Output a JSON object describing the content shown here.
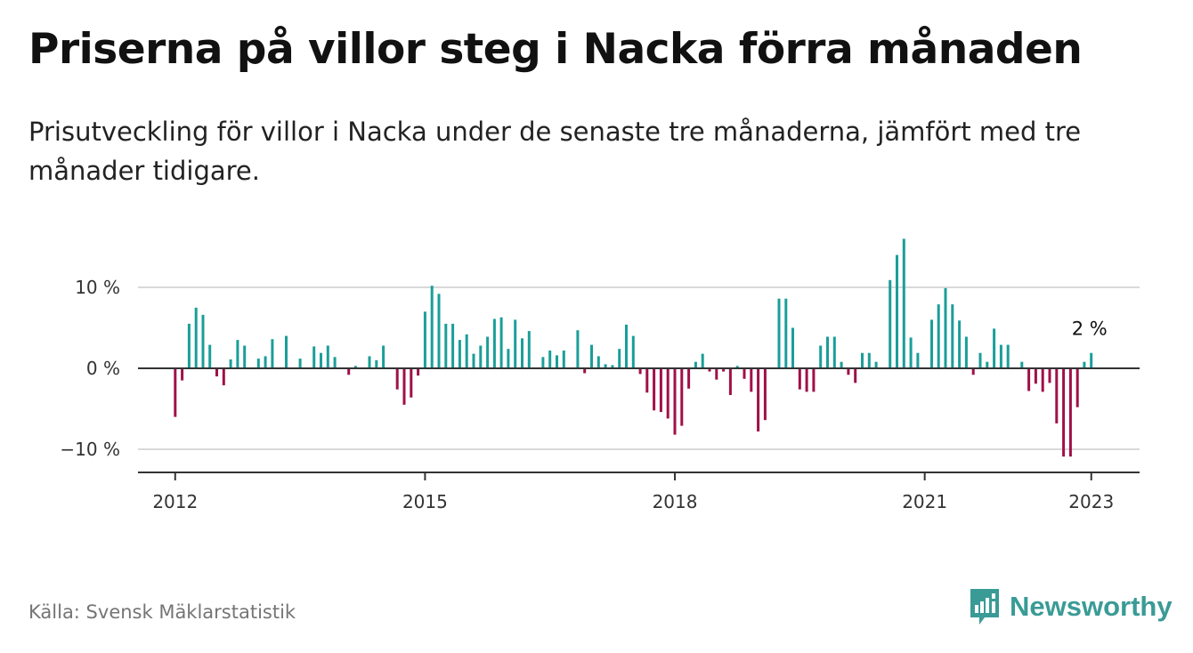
{
  "header": {
    "title": "Priserna på villor steg i Nacka förra månaden",
    "subtitle": "Prisutveckling för villor i Nacka under de senaste tre månaderna, jämfört med tre månader tidigare."
  },
  "footer": {
    "source": "Källa: Svensk Mäklarstatistik",
    "brand": "Newsworthy"
  },
  "colors": {
    "positive": "#1a9e99",
    "negative": "#a01048",
    "grid": "#d9d9d9",
    "axis": "#333333",
    "brand": "#3a9b96"
  },
  "icons": {
    "brand_logo": "bar-chart-icon"
  },
  "chart_data": {
    "type": "bar",
    "y_tick_labels": [
      "−10 %",
      "0 %",
      "10 %"
    ],
    "y_ticks": [
      -10,
      0,
      10
    ],
    "ylim": [
      -12.6,
      17.3
    ],
    "x_tick_labels": [
      "2012",
      "2015",
      "2018",
      "2021",
      "2023"
    ],
    "x_ticks": [
      2012,
      2015,
      2018,
      2021,
      2023
    ],
    "xlim": [
      2011.5,
      2023.58
    ],
    "last_value_label": "2 %",
    "grid": true,
    "series": [
      {
        "start": "2012-01",
        "values": [
          -6,
          -1.5,
          5.5,
          7.5,
          6.6,
          2.9,
          -1,
          -2.1,
          1.1,
          3.5,
          2.8,
          0,
          1.2,
          1.5,
          3.6,
          0,
          4,
          0,
          1.2,
          0,
          2.7,
          1.9,
          2.8,
          1.4,
          0,
          -0.8,
          0.3,
          0,
          1.5,
          1,
          2.8,
          0,
          -2.6,
          -4.5,
          -3.6,
          -0.9,
          7,
          10.2,
          9.2,
          5.5,
          5.5,
          3.5,
          4.2,
          1.8,
          2.8,
          3.9,
          6.1,
          6.3,
          2.4,
          6,
          3.7,
          4.6,
          0,
          1.4,
          2.2,
          1.6,
          2.2,
          0,
          4.7,
          -0.6,
          2.9,
          1.5,
          0.5,
          0.4,
          2.4,
          5.4,
          4,
          -0.7,
          -3,
          -5.2,
          -5.4,
          -6.2,
          -8.2,
          -7.1,
          -2.5,
          0.8,
          1.8,
          -0.4,
          -1.4,
          -0.4,
          -3.3,
          0.3,
          -1.3,
          -2.9,
          -7.8,
          -6.4,
          0,
          8.6,
          8.6,
          5,
          -2.6,
          -2.9,
          -2.9,
          2.8,
          3.9,
          3.9,
          0.8,
          -0.8,
          -1.8,
          1.9,
          1.9,
          0.8,
          0,
          10.9,
          14,
          16,
          3.8,
          1.9,
          0,
          6,
          7.9,
          9.9,
          7.9,
          5.9,
          3.9,
          -0.8,
          1.9,
          0.8,
          4.9,
          2.9,
          2.9,
          0,
          0.8,
          -2.8,
          -1.9,
          -2.9,
          -1.8,
          -6.8,
          -10.9,
          -10.9,
          -4.8,
          0.8,
          1.9
        ]
      }
    ]
  }
}
